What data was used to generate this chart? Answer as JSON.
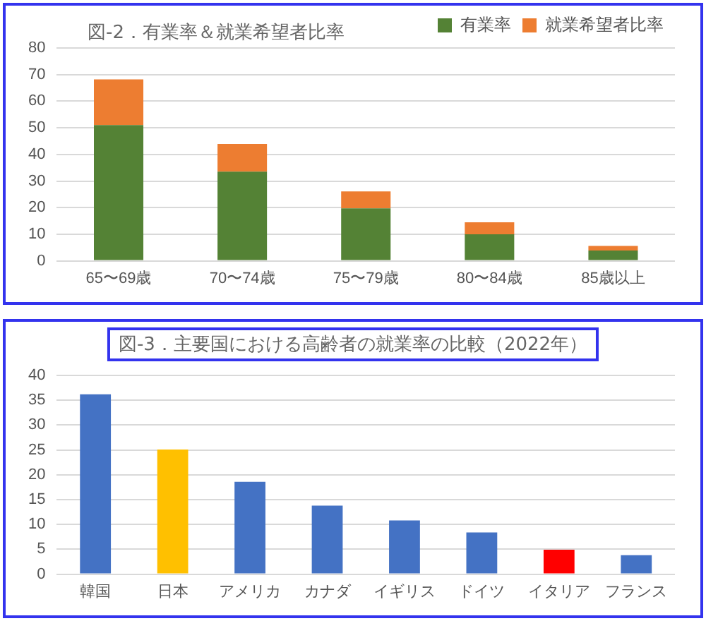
{
  "chart_data": [
    {
      "type": "bar",
      "title": "図-2．有業率＆就業希望者比率",
      "categories": [
        "65〜69歳",
        "70〜74歳",
        "75〜79歳",
        "80〜84歳",
        "85歳以上"
      ],
      "stacked": true,
      "series": [
        {
          "name": "有業率",
          "color": "#548235",
          "values": [
            51,
            33.5,
            19.7,
            10,
            3.9
          ]
        },
        {
          "name": "就業希望者比率",
          "color": "#ed7d31",
          "values": [
            17.2,
            10.4,
            6.4,
            4.5,
            1.7
          ]
        }
      ],
      "ylim": [
        0,
        80
      ],
      "yticks": [
        0,
        10,
        20,
        30,
        40,
        50,
        60,
        70,
        80
      ],
      "grid": "y",
      "legend": "top right"
    },
    {
      "type": "bar",
      "title": "図-3．主要国における高齢者の就業率の比較（2022年）",
      "categories": [
        "韓国",
        "日本",
        "アメリカ",
        "カナダ",
        "イギリス",
        "ドイツ",
        "イタリア",
        "フランス"
      ],
      "values": [
        36.2,
        25.1,
        18.6,
        13.8,
        10.8,
        8.4,
        4.9,
        3.8
      ],
      "colors": [
        "#4472c4",
        "#ffc000",
        "#4472c4",
        "#4472c4",
        "#4472c4",
        "#4472c4",
        "#ff0000",
        "#4472c4"
      ],
      "ylim": [
        0,
        40
      ],
      "yticks": [
        0,
        5,
        10,
        15,
        20,
        25,
        30,
        35,
        40
      ],
      "grid": "y"
    }
  ]
}
